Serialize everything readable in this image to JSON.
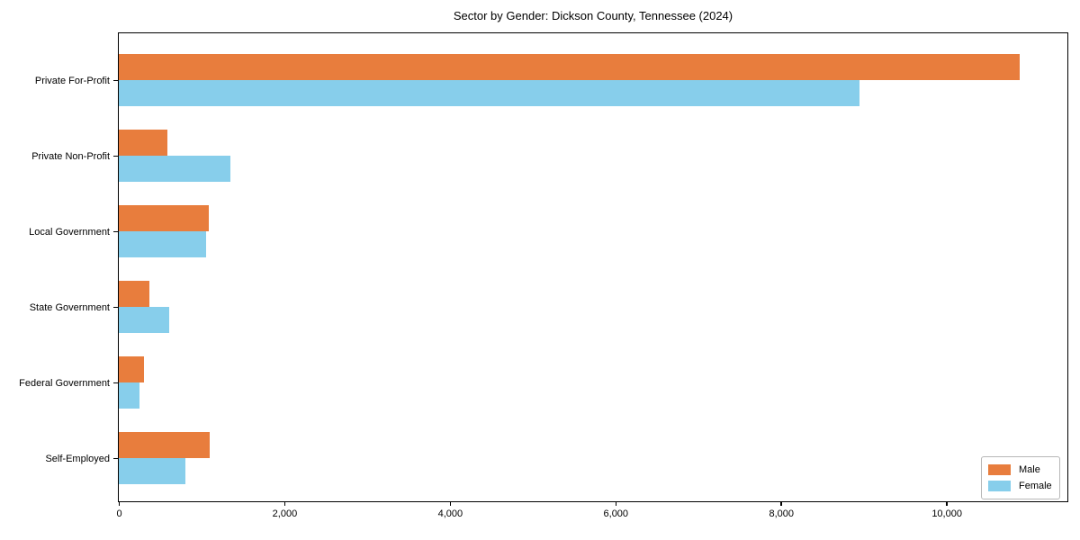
{
  "chart_data": {
    "type": "bar",
    "orientation": "horizontal",
    "title": "Sector by Gender: Dickson County, Tennessee (2024)",
    "categories": [
      "Private For-Profit",
      "Private Non-Profit",
      "Local Government",
      "State Government",
      "Federal Government",
      "Self-Employed"
    ],
    "series": [
      {
        "name": "Male",
        "color": "#e87d3d",
        "values": [
          10890,
          590,
          1090,
          370,
          300,
          1100
        ]
      },
      {
        "name": "Female",
        "color": "#87ceeb",
        "values": [
          8950,
          1350,
          1060,
          610,
          250,
          810
        ]
      }
    ],
    "xlabel": "",
    "ylabel": "",
    "xlim": [
      0,
      11450
    ],
    "xticks": [
      0,
      2000,
      4000,
      6000,
      8000,
      10000
    ],
    "xtick_labels": [
      "0",
      "2,000",
      "4,000",
      "6,000",
      "8,000",
      "10,000"
    ],
    "grid": false,
    "legend_position": "lower right",
    "frame": true
  },
  "colors": {
    "male": "#e87d3d",
    "female": "#87ceeb",
    "spine": "#000000",
    "background": "#ffffff"
  }
}
